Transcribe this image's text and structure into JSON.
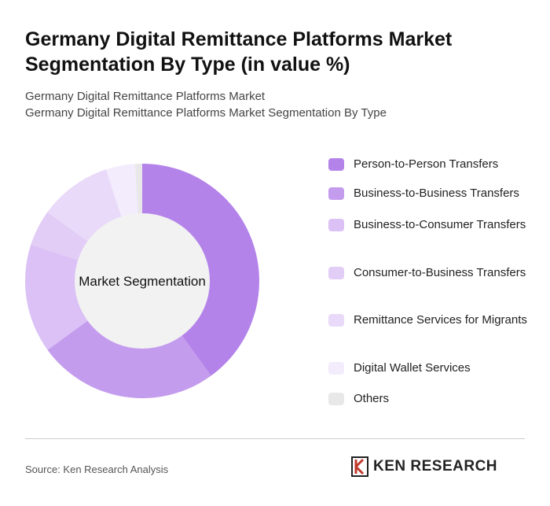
{
  "title": "Germany Digital Remittance Platforms Market Segmentation By Type (in value %)",
  "subtitle_1": "Germany Digital Remittance Platforms Market",
  "subtitle_2": "Germany Digital Remittance Platforms Market Segmentation By Type",
  "source": "Source: Ken Research Analysis",
  "logo_text": "KEN RESEARCH",
  "chart_data": {
    "type": "pie",
    "variant": "donut",
    "center_label": "Market Segmentation",
    "legend_position": "right",
    "categories": [
      "Person-to-Person Transfers",
      "Business-to-Business Transfers",
      "Business-to-Consumer Transfers",
      "Consumer-to-Business Transfers",
      "Remittance Services for Migrants",
      "Digital Wallet Services",
      "Others"
    ],
    "values": [
      40,
      25,
      15,
      5,
      10,
      4,
      1
    ],
    "colors": [
      "#b483ea",
      "#c49cee",
      "#dbc1f5",
      "#e2cdf6",
      "#e9daf9",
      "#f3ecfc",
      "#e8e8e8"
    ]
  }
}
